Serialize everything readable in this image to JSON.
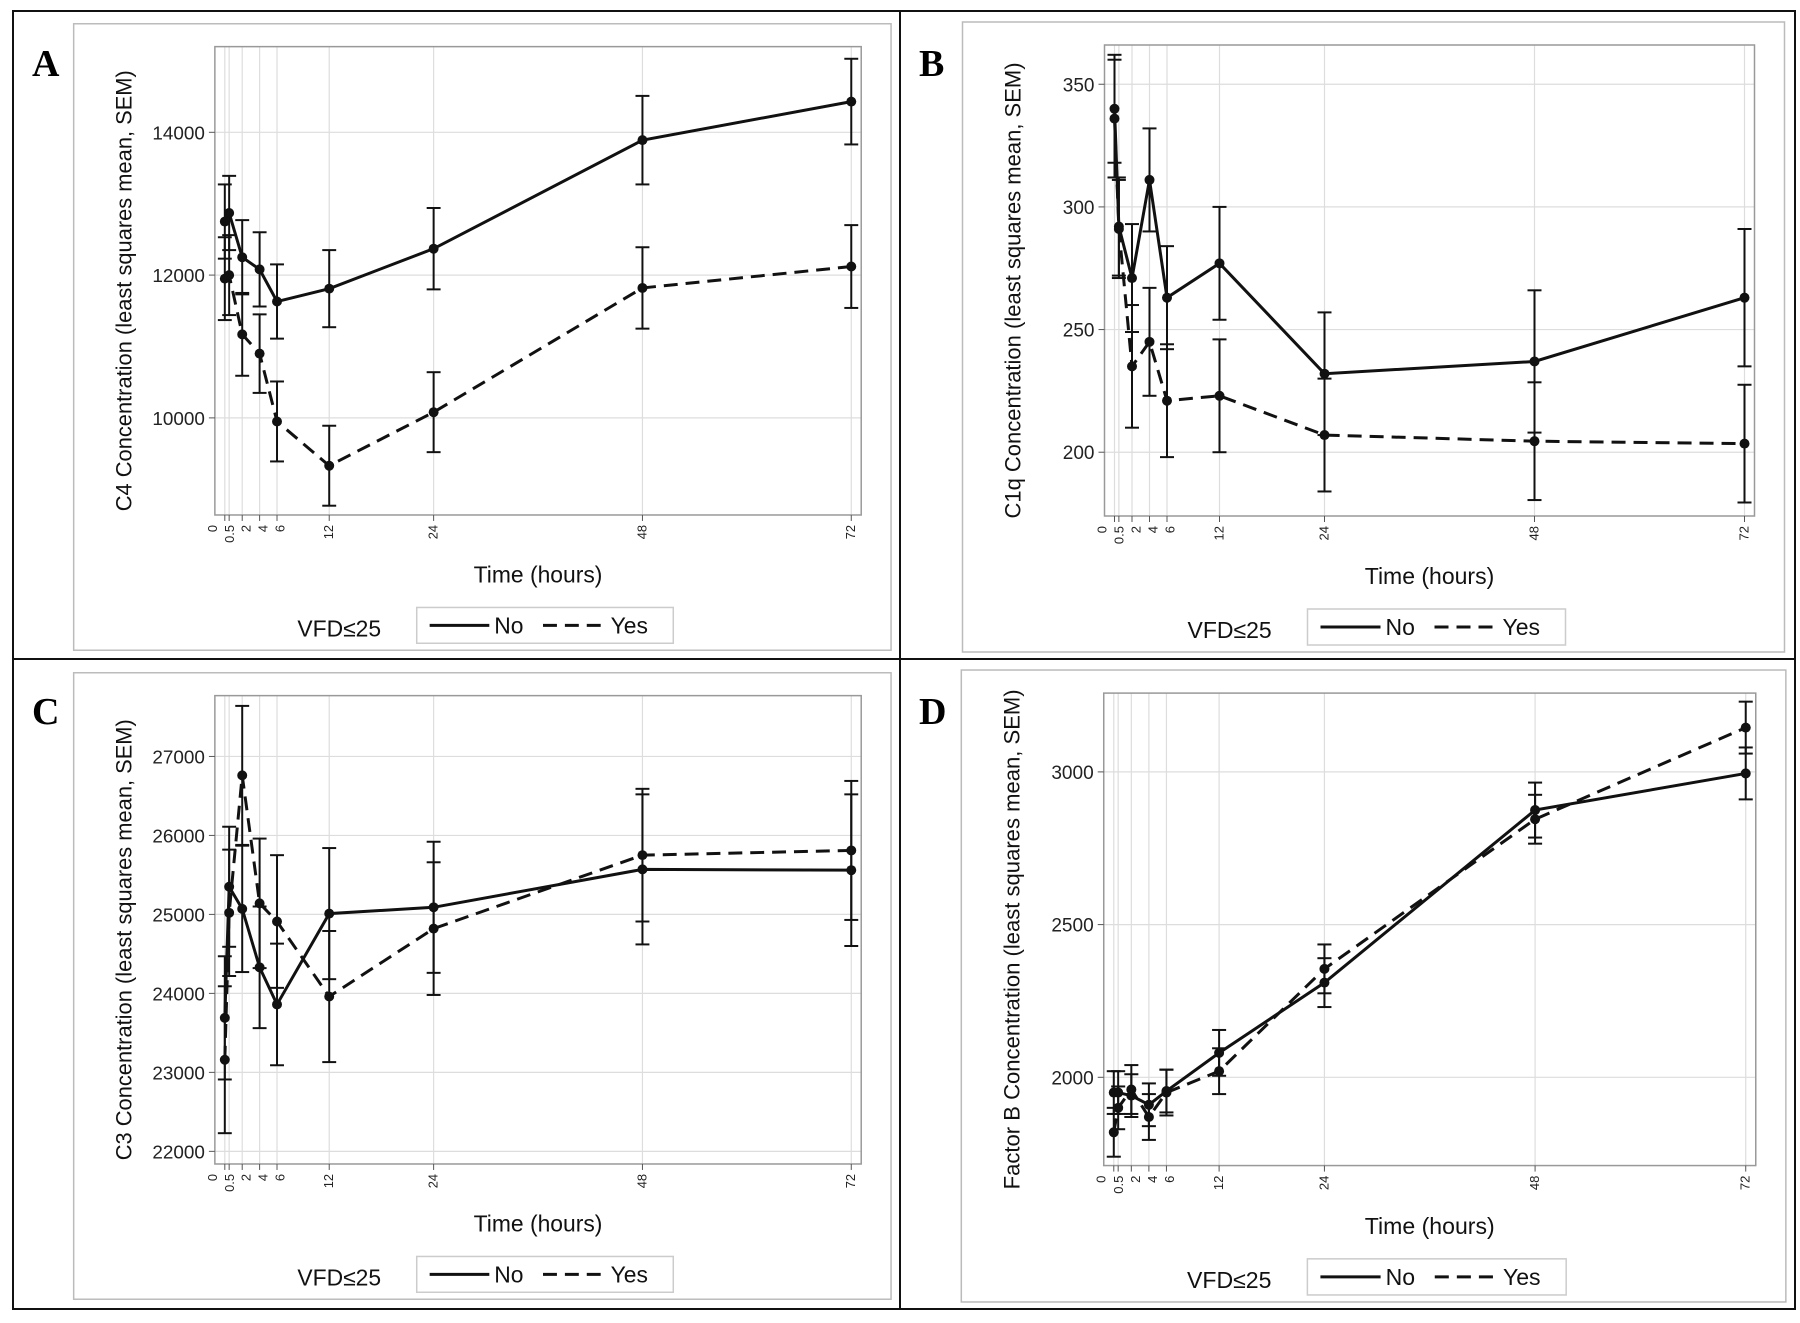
{
  "chart_data": [
    {
      "panel": "A",
      "type": "line",
      "xlabel": "Time (hours)",
      "ylabel": "C4 Concentration (least squares mean, SEM)",
      "x": [
        0,
        0.5,
        2,
        4,
        6,
        12,
        24,
        48,
        72
      ],
      "x_tick_labels": [
        "0",
        "0.5",
        "2",
        "4",
        "6",
        "12",
        "24",
        "48",
        "72"
      ],
      "xlim": [
        0,
        72
      ],
      "ylim": [
        8640,
        15200
      ],
      "y_ticks": [
        10000,
        12000,
        14000
      ],
      "legend": {
        "title": "VFD≤25",
        "entries": [
          "No",
          "Yes"
        ],
        "placement": "bottom"
      },
      "series": [
        {
          "name": "No",
          "style": "solid",
          "values": [
            12750,
            12870,
            12250,
            12080,
            11630,
            11810,
            12370,
            13890,
            14430
          ],
          "sem": [
            520,
            520,
            520,
            520,
            520,
            540,
            570,
            620,
            600
          ]
        },
        {
          "name": "Yes",
          "style": "dashed",
          "values": [
            11950,
            12000,
            11170,
            10900,
            9950,
            9330,
            10080,
            11820,
            12120
          ],
          "sem": [
            580,
            560,
            580,
            550,
            560,
            560,
            560,
            570,
            580
          ]
        }
      ]
    },
    {
      "panel": "B",
      "type": "line",
      "xlabel": "Time (hours)",
      "ylabel": "C1q Concentration (least squares mean, SEM)",
      "x": [
        0,
        0.5,
        2,
        4,
        6,
        12,
        24,
        48,
        72
      ],
      "x_tick_labels": [
        "0",
        "0.5",
        "2",
        "4",
        "6",
        "12",
        "24",
        "48",
        "72"
      ],
      "xlim": [
        0,
        72
      ],
      "ylim": [
        174,
        366
      ],
      "y_ticks": [
        200,
        250,
        300,
        350
      ],
      "legend": {
        "title": "VFD≤25",
        "entries": [
          "No",
          "Yes"
        ],
        "placement": "bottom"
      },
      "series": [
        {
          "name": "No",
          "style": "solid",
          "values": [
            340,
            292,
            271,
            311,
            263,
            277,
            232,
            237,
            263
          ],
          "sem": [
            22,
            20,
            22,
            21,
            21,
            23,
            25,
            29,
            28
          ]
        },
        {
          "name": "Yes",
          "style": "dashed",
          "values": [
            336,
            291,
            235,
            245,
            221,
            223,
            207,
            204.5,
            203.5
          ],
          "sem": [
            24,
            20,
            25,
            22,
            23,
            23,
            23,
            24,
            24
          ]
        }
      ]
    },
    {
      "panel": "C",
      "type": "line",
      "xlabel": "Time (hours)",
      "ylabel": "C3 Concentration (least squares mean, SEM)",
      "x": [
        0,
        0.5,
        2,
        4,
        6,
        12,
        24,
        48,
        72
      ],
      "x_tick_labels": [
        "0",
        "0.5",
        "2",
        "4",
        "6",
        "12",
        "24",
        "48",
        "72"
      ],
      "xlim": [
        0,
        72
      ],
      "ylim": [
        21840,
        27770
      ],
      "y_ticks": [
        22000,
        23000,
        24000,
        25000,
        26000,
        27000
      ],
      "legend": {
        "title": "VFD≤25",
        "entries": [
          "No",
          "Yes"
        ],
        "placement": "bottom"
      },
      "series": [
        {
          "name": "No",
          "style": "solid",
          "values": [
            23690,
            25350,
            25070,
            24330,
            23860,
            25010,
            25090,
            25570,
            25560
          ],
          "sem": [
            780,
            760,
            800,
            770,
            770,
            830,
            830,
            950,
            960
          ]
        },
        {
          "name": "Yes",
          "style": "dashed",
          "values": [
            23160,
            25020,
            26760,
            25140,
            24910,
            23960,
            24820,
            25750,
            25810
          ],
          "sem": [
            930,
            800,
            880,
            820,
            840,
            830,
            840,
            840,
            880
          ]
        }
      ]
    },
    {
      "panel": "D",
      "type": "line",
      "xlabel": "Time (hours)",
      "ylabel": "Factor B Concentration (least squares mean, SEM)",
      "x": [
        0,
        0.5,
        2,
        4,
        6,
        12,
        24,
        48,
        72
      ],
      "x_tick_labels": [
        "0",
        "0.5",
        "2",
        "4",
        "6",
        "12",
        "24",
        "48",
        "72"
      ],
      "xlim": [
        0,
        72
      ],
      "ylim": [
        1711,
        3258
      ],
      "y_ticks": [
        2000,
        2500,
        3000
      ],
      "legend": {
        "title": "VFD≤25",
        "entries": [
          "No",
          "Yes"
        ],
        "placement": "bottom"
      },
      "series": [
        {
          "name": "No",
          "style": "solid",
          "values": [
            1950,
            1950,
            1940,
            1910,
            1955,
            2080,
            2310,
            2875,
            2995
          ],
          "sem": [
            70,
            70,
            70,
            70,
            70,
            75,
            80,
            90,
            85
          ]
        },
        {
          "name": "Yes",
          "style": "dashed",
          "values": [
            1820,
            1900,
            1960,
            1870,
            1950,
            2020,
            2355,
            2845,
            3145
          ],
          "sem": [
            80,
            70,
            80,
            75,
            75,
            75,
            80,
            80,
            85
          ]
        }
      ]
    }
  ],
  "panel_letters": [
    "A",
    "B",
    "C",
    "D"
  ]
}
